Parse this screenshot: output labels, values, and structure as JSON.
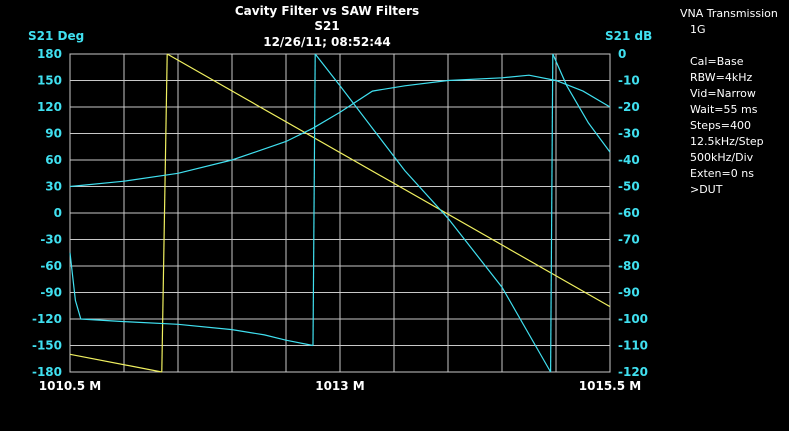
{
  "chart_data": {
    "type": "line",
    "title": "Cavity Filter vs SAW Filters",
    "subtitle": "S21",
    "timestamp": "12/26/11; 08:52:44",
    "ylabel_left": "S21 Deg",
    "ylabel_right": "S21 dB",
    "x_ticks": [
      "1010.5 M",
      "1013 M",
      "1015.5 M"
    ],
    "xlim": [
      1010.5,
      1015.5
    ],
    "ylim_left": [
      -180,
      180
    ],
    "ylim_right": [
      -120,
      0
    ],
    "yticks_left": [
      180,
      150,
      120,
      90,
      60,
      30,
      0,
      -30,
      -60,
      -90,
      -120,
      -150,
      -180
    ],
    "yticks_right": [
      0,
      -10,
      -20,
      -30,
      -40,
      -50,
      -60,
      -70,
      -80,
      -90,
      -100,
      -110,
      -120
    ],
    "grid": true,
    "series": [
      {
        "axis": "left",
        "color": "#f0f060",
        "segments": [
          {
            "x": [
              1010.5,
              1011.35
            ],
            "y": [
              -160,
              -180
            ]
          },
          {
            "x": [
              1011.35,
              1011.4
            ],
            "y": [
              -180,
              180
            ]
          },
          {
            "x": [
              1011.4,
              1015.5
            ],
            "y": [
              180,
              -106
            ]
          }
        ]
      },
      {
        "axis": "right",
        "color": "#40e0f0",
        "segments": [
          {
            "x": [
              1010.5,
              1011.0,
              1011.5,
              1012.0,
              1012.5,
              1012.75,
              1013.0,
              1013.3,
              1013.6,
              1014.0,
              1014.5,
              1014.75,
              1015.0,
              1015.25,
              1015.5
            ],
            "y": [
              -50,
              -48,
              -45,
              -40,
              -33,
              -28,
              -22,
              -14,
              -12,
              -10,
              -9,
              -8,
              -10,
              -14,
              -20
            ]
          },
          {
            "x": [
              1010.5,
              1010.55,
              1010.6,
              1011.0,
              1011.5,
              1012.0,
              1012.3,
              1012.5,
              1012.75
            ],
            "y": [
              -75,
              -93,
              -100,
              -101,
              -102,
              -104,
              -106,
              -108,
              -110
            ]
          },
          {
            "x": [
              1012.75,
              1012.77
            ],
            "y": [
              -110,
              0
            ]
          },
          {
            "x": [
              1012.77,
              1013.0,
              1013.3,
              1013.6,
              1014.0,
              1014.5,
              1014.95
            ],
            "y": [
              0,
              -12,
              -28,
              -44,
              -62,
              -88,
              -120
            ]
          },
          {
            "x": [
              1014.95,
              1014.97
            ],
            "y": [
              -120,
              0
            ]
          },
          {
            "x": [
              1014.97,
              1015.1,
              1015.3,
              1015.5
            ],
            "y": [
              0,
              -12,
              -26,
              -37
            ]
          }
        ]
      }
    ]
  },
  "side_panel": {
    "lines_head": [
      "VNA Transmission"
    ],
    "lines": [
      "1G",
      "",
      "Cal=Base",
      "RBW=4kHz",
      "Vid=Narrow",
      "Wait=55 ms",
      "Steps=400",
      "12.5kHz/Step",
      "500kHz/Div",
      "Exten=0 ns",
      ">DUT"
    ]
  }
}
